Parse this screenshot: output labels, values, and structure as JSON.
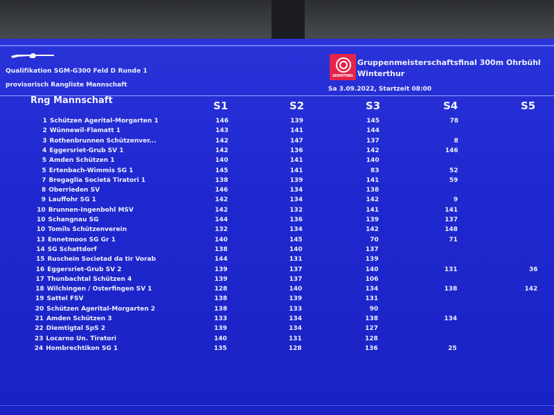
{
  "header": {
    "qualification": "Qualifikation SGM-G300 Feld D Runde 1",
    "subtitle": "provisorisch Rangliste Mannschaft",
    "event_line1": "Gruppenmeisterschaftsfinal 300m Ohrbühl",
    "event_line2": "Winterthur",
    "date_line": "Sa 3.09.2022, Startzeit 08:00",
    "logo_text": "SHOOTING"
  },
  "table": {
    "columns": [
      "Rng Mannschaft",
      "S1",
      "S2",
      "S3",
      "S4",
      "S5"
    ],
    "rows": [
      {
        "rank": "1",
        "name": "Schützen Ägerital-Morgarten 1",
        "s1": "146",
        "s2": "139",
        "s3": "145",
        "s4": "78",
        "s5": ""
      },
      {
        "rank": "2",
        "name": "Wünnewil-Flamatt 1",
        "s1": "143",
        "s2": "141",
        "s3": "144",
        "s4": "",
        "s5": ""
      },
      {
        "rank": "3",
        "name": "Rothenbrunnen Schützenver...",
        "s1": "142",
        "s2": "147",
        "s3": "137",
        "s4": "8",
        "s5": ""
      },
      {
        "rank": "4",
        "name": "Eggersriet-Grub SV 1",
        "s1": "142",
        "s2": "136",
        "s3": "142",
        "s4": "146",
        "s5": ""
      },
      {
        "rank": "5",
        "name": "Amden Schützen 1",
        "s1": "140",
        "s2": "141",
        "s3": "140",
        "s4": "",
        "s5": ""
      },
      {
        "rank": "5",
        "name": "Ertenbach-Wimmis SG 1",
        "s1": "145",
        "s2": "141",
        "s3": "83",
        "s4": "52",
        "s5": ""
      },
      {
        "rank": "7",
        "name": "Bregaglia Società Tiratori 1",
        "s1": "138",
        "s2": "139",
        "s3": "141",
        "s4": "59",
        "s5": ""
      },
      {
        "rank": "8",
        "name": "Oberrieden SV",
        "s1": "146",
        "s2": "134",
        "s3": "138",
        "s4": "",
        "s5": ""
      },
      {
        "rank": "9",
        "name": "Lauffohr SG 1",
        "s1": "142",
        "s2": "134",
        "s3": "142",
        "s4": "9",
        "s5": ""
      },
      {
        "rank": "10",
        "name": "Brunnen-Ingenbohl MSV",
        "s1": "142",
        "s2": "132",
        "s3": "141",
        "s4": "141",
        "s5": ""
      },
      {
        "rank": "10",
        "name": "Schangnau SG",
        "s1": "144",
        "s2": "136",
        "s3": "139",
        "s4": "137",
        "s5": ""
      },
      {
        "rank": "10",
        "name": "Tomils Schützenverein",
        "s1": "132",
        "s2": "134",
        "s3": "142",
        "s4": "148",
        "s5": ""
      },
      {
        "rank": "13",
        "name": "Ennetmoos SG Gr 1",
        "s1": "140",
        "s2": "145",
        "s3": "70",
        "s4": "71",
        "s5": ""
      },
      {
        "rank": "14",
        "name": "SG Schattdorf",
        "s1": "138",
        "s2": "140",
        "s3": "137",
        "s4": "",
        "s5": ""
      },
      {
        "rank": "15",
        "name": "Ruschein Societad da tir Vorab",
        "s1": "144",
        "s2": "131",
        "s3": "139",
        "s4": "",
        "s5": ""
      },
      {
        "rank": "16",
        "name": "Eggersriet-Grub SV 2",
        "s1": "139",
        "s2": "137",
        "s3": "140",
        "s4": "131",
        "s5": "36"
      },
      {
        "rank": "17",
        "name": "Thunbachtal Schützen 4",
        "s1": "139",
        "s2": "137",
        "s3": "106",
        "s4": "",
        "s5": ""
      },
      {
        "rank": "18",
        "name": "Wilchingen / Osterfingen SV 1",
        "s1": "128",
        "s2": "140",
        "s3": "134",
        "s4": "138",
        "s5": "142"
      },
      {
        "rank": "19",
        "name": "Sattel FSV",
        "s1": "138",
        "s2": "139",
        "s3": "131",
        "s4": "",
        "s5": ""
      },
      {
        "rank": "20",
        "name": "Schützen Ägerital-Morgarten 2",
        "s1": "138",
        "s2": "133",
        "s3": "90",
        "s4": "",
        "s5": ""
      },
      {
        "rank": "21",
        "name": "Amden Schützen 3",
        "s1": "133",
        "s2": "134",
        "s3": "138",
        "s4": "134",
        "s5": ""
      },
      {
        "rank": "22",
        "name": "Diemtigtal SpS 2",
        "s1": "139",
        "s2": "134",
        "s3": "127",
        "s4": "",
        "s5": ""
      },
      {
        "rank": "23",
        "name": "Locarno Un. Tiratori",
        "s1": "140",
        "s2": "131",
        "s3": "128",
        "s4": "",
        "s5": ""
      },
      {
        "rank": "24",
        "name": "Hombrechtikon SG 1",
        "s1": "135",
        "s2": "128",
        "s3": "136",
        "s4": "25",
        "s5": ""
      }
    ]
  }
}
